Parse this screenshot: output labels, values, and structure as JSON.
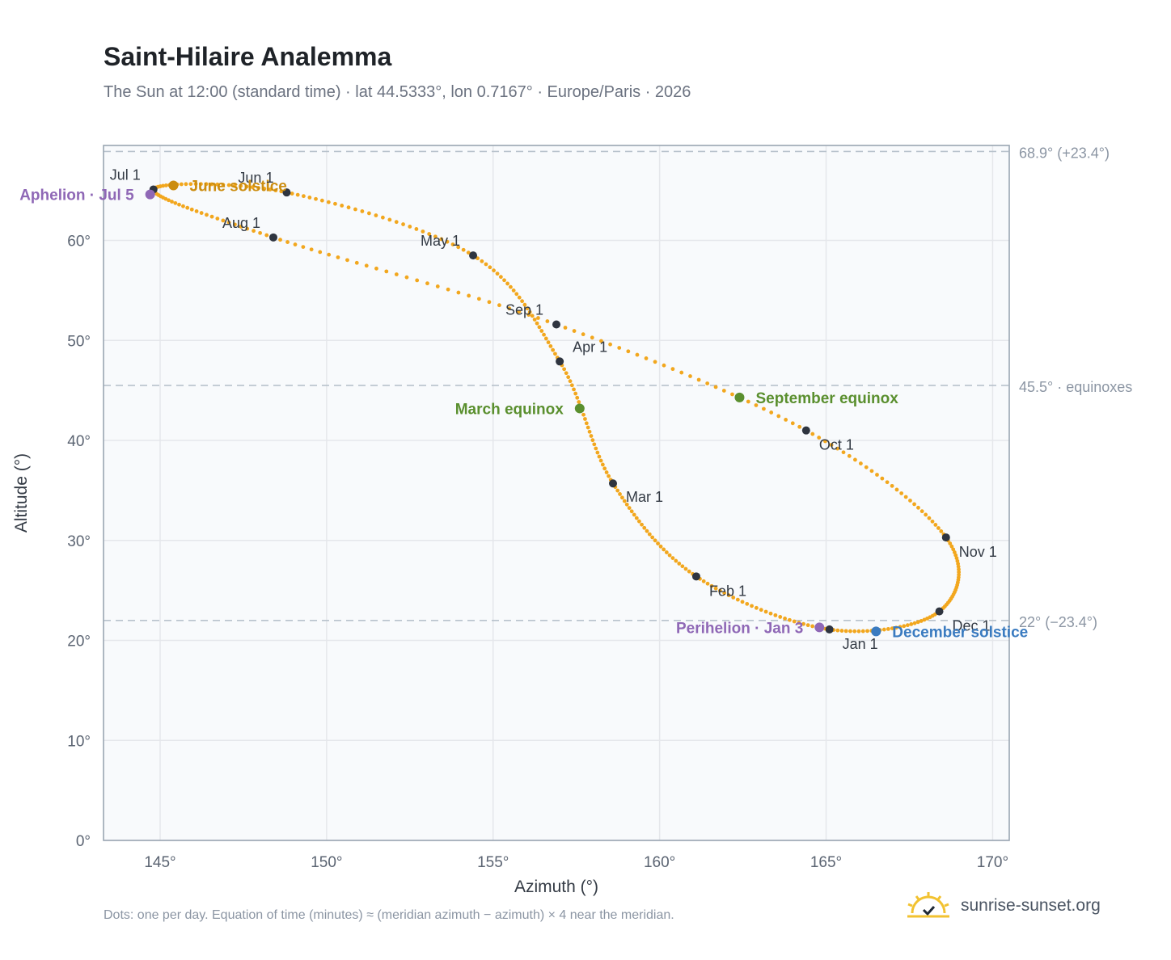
{
  "header": {
    "title": "Saint-Hilaire Analemma",
    "subtitle": "The Sun at 12:00 (standard time) · lat 44.5333°, lon 0.7167° · Europe/Paris · 2026"
  },
  "footer": {
    "note": "Dots: one per day. Equation of time (minutes) ≈ (meridian azimuth − azimuth) × 4 near the meridian.",
    "brand": "sunrise-sunset.org"
  },
  "colors": {
    "curve": "#f2a71e",
    "month_dot": "#2f3540",
    "equinox": "#5a8f2e",
    "june_solstice": "#cc8d10",
    "december_solstice": "#3a7bc0",
    "apsis": "#8f68b6",
    "grid": "#e5e7eb",
    "reference_line": "#b8c2cc",
    "plot_bg": "#f8fafc",
    "axis_text": "#5b6472",
    "logo": "#f2c230"
  },
  "chart_data": {
    "type": "scatter",
    "xlabel": "Azimuth (°)",
    "ylabel": "Altitude (°)",
    "xlim": [
      143.3,
      170.5
    ],
    "ylim": [
      0,
      69.5
    ],
    "x_ticks": [
      145,
      150,
      155,
      160,
      165,
      170
    ],
    "x_tick_labels": [
      "145°",
      "150°",
      "155°",
      "160°",
      "165°",
      "170°"
    ],
    "y_ticks": [
      0,
      10,
      20,
      30,
      40,
      50,
      60
    ],
    "y_tick_labels": [
      "0°",
      "10°",
      "20°",
      "30°",
      "40°",
      "50°",
      "60°"
    ],
    "grid": true,
    "reference_lines": [
      {
        "y": 68.9,
        "label": "68.9° (+23.4°)"
      },
      {
        "y": 45.5,
        "label": "45.5° · equinoxes"
      },
      {
        "y": 22.0,
        "label": "22° (−23.4°)"
      }
    ],
    "months": [
      {
        "label": "Jan 1",
        "az": 165.1,
        "alt": 21.1
      },
      {
        "label": "Feb 1",
        "az": 161.1,
        "alt": 26.4
      },
      {
        "label": "Mar 1",
        "az": 158.6,
        "alt": 35.7
      },
      {
        "label": "Apr 1",
        "az": 157.0,
        "alt": 47.9
      },
      {
        "label": "May 1",
        "az": 154.4,
        "alt": 58.5
      },
      {
        "label": "Jun 1",
        "az": 148.8,
        "alt": 64.8
      },
      {
        "label": "Jul 1",
        "az": 144.8,
        "alt": 65.1
      },
      {
        "label": "Aug 1",
        "az": 148.4,
        "alt": 60.3
      },
      {
        "label": "Sep 1",
        "az": 156.9,
        "alt": 51.6
      },
      {
        "label": "Oct 1",
        "az": 164.4,
        "alt": 41.0
      },
      {
        "label": "Nov 1",
        "az": 168.6,
        "alt": 30.3
      },
      {
        "label": "Dec 1",
        "az": 168.4,
        "alt": 22.9
      }
    ],
    "events": [
      {
        "label": "March equinox",
        "az": 157.6,
        "alt": 43.2,
        "color_key": "equinox",
        "anchor": "end"
      },
      {
        "label": "June solstice",
        "az": 145.4,
        "alt": 65.5,
        "color_key": "june_solstice",
        "anchor": "start"
      },
      {
        "label": "September equinox",
        "az": 162.4,
        "alt": 44.3,
        "color_key": "equinox",
        "anchor": "start"
      },
      {
        "label": "December solstice",
        "az": 166.5,
        "alt": 20.9,
        "color_key": "december_solstice",
        "anchor": "start"
      },
      {
        "label": "Aphelion · Jul 5",
        "az": 144.7,
        "alt": 64.6,
        "color_key": "apsis",
        "anchor": "end"
      },
      {
        "label": "Perihelion · Jan 3",
        "az": 164.8,
        "alt": 21.3,
        "color_key": "apsis",
        "anchor": "end"
      }
    ]
  }
}
